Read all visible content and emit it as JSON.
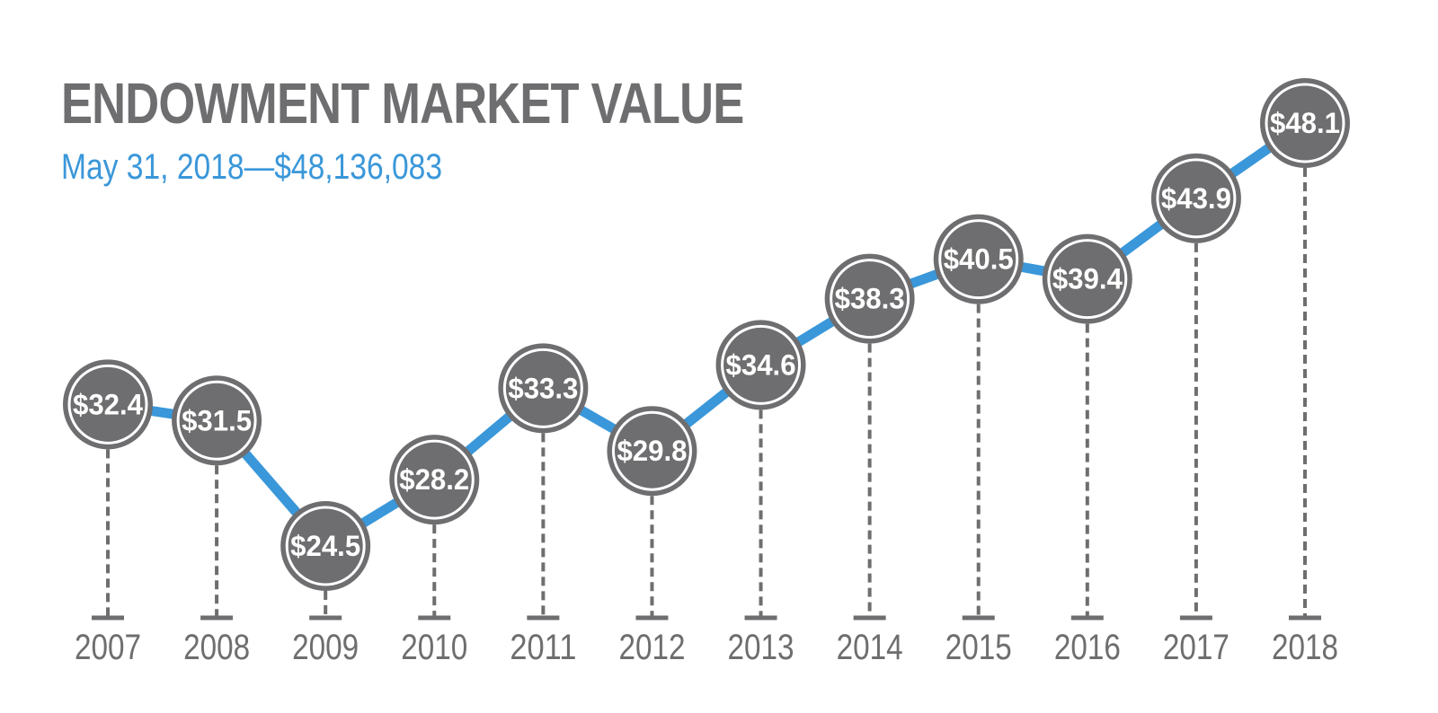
{
  "header": {
    "title": "ENDOWMENT MARKET VALUE",
    "subtitle": "May 31, 2018—$48,136,083"
  },
  "chart_data": {
    "type": "line",
    "title": "ENDOWMENT MARKET VALUE",
    "subtitle": "May 31, 2018—$48,136,083",
    "xlabel": "",
    "ylabel": "",
    "categories": [
      "2007",
      "2008",
      "2009",
      "2010",
      "2011",
      "2012",
      "2013",
      "2014",
      "2015",
      "2016",
      "2017",
      "2018"
    ],
    "series": [
      {
        "values": [
          32.4,
          31.5,
          24.5,
          28.2,
          33.3,
          29.8,
          34.6,
          38.3,
          40.5,
          39.4,
          43.9,
          48.1
        ]
      }
    ],
    "data_labels": [
      "$32.4",
      "$31.5",
      "$24.5",
      "$28.2",
      "$33.3",
      "$29.8",
      "$34.6",
      "$38.3",
      "$40.5",
      "$39.4",
      "$43.9",
      "$48.1"
    ],
    "ylim": [
      24.5,
      48.1
    ],
    "grid": false,
    "legend": "none",
    "colors": {
      "line": "#3a97d9",
      "marker": "#6e6e70",
      "marker_ring": "#ffffff",
      "text": "#6e6e70",
      "subtitle": "#3a97d9"
    }
  }
}
